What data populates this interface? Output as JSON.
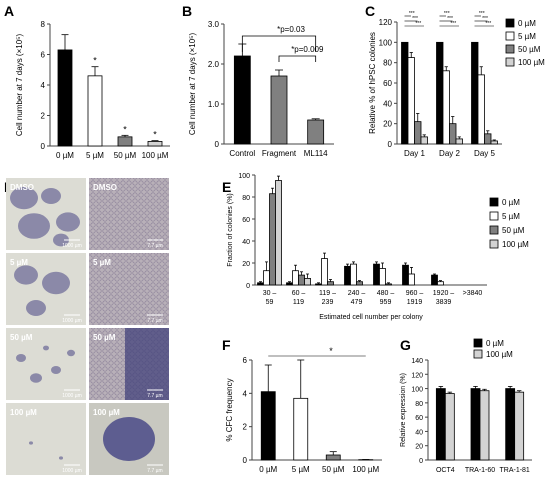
{
  "panels": [
    {
      "letter": "A"
    },
    {
      "letter": "B"
    },
    {
      "letter": "C"
    },
    {
      "letter": "D"
    },
    {
      "letter": "E"
    },
    {
      "letter": "F"
    },
    {
      "letter": "G"
    }
  ],
  "colors": {
    "black": "#000000",
    "white": "#ffffff",
    "gray": "#808080",
    "light": "#d3d3d3"
  },
  "chart_data": [
    {
      "panel": "A",
      "type": "bar",
      "ylabel": "Cell number at 7 days (×10⁵)",
      "ylim": [
        0,
        8
      ],
      "yticks": [
        0,
        2,
        4,
        6,
        8
      ],
      "categories": [
        "0 µM",
        "5 µM",
        "50 µM",
        "100 µM"
      ],
      "values": [
        6.3,
        4.6,
        0.6,
        0.3
      ],
      "errors": [
        1.0,
        0.6,
        0.1,
        0.05
      ],
      "colors": [
        "#000000",
        "#ffffff",
        "#808080",
        "#d3d3d3"
      ],
      "markers": [
        "",
        "*",
        "*",
        "*"
      ]
    },
    {
      "panel": "B",
      "type": "bar",
      "ylabel": "Cell number at 7 days (×10⁵)",
      "ylim": [
        0,
        3.0
      ],
      "yticks": [
        0,
        1.0,
        2.0,
        3.0
      ],
      "yticklabels": [
        "0",
        "1.0",
        "2.0",
        "3.0"
      ],
      "categories": [
        "Control",
        "Fragment",
        "ML114"
      ],
      "values": [
        2.2,
        1.7,
        0.6
      ],
      "errors": [
        0.3,
        0.15,
        0.03
      ],
      "colors": [
        "#000000",
        "#808080",
        "#808080"
      ],
      "annotations": [
        "*p=0.03",
        "*p=0.009"
      ]
    },
    {
      "panel": "C",
      "type": "bar",
      "ylabel": "Relative % of hPSC colonies",
      "ylim": [
        0,
        120
      ],
      "yticks": [
        0,
        20,
        40,
        60,
        80,
        100,
        120
      ],
      "categories": [
        "Day 1",
        "Day 2",
        "Day 5"
      ],
      "series": [
        {
          "name": "0 µM",
          "values": [
            100,
            100,
            100
          ],
          "errors": [
            0,
            0,
            0
          ]
        },
        {
          "name": "5 µM",
          "values": [
            85,
            72,
            68
          ],
          "errors": [
            5,
            4,
            8
          ]
        },
        {
          "name": "50 µM",
          "values": [
            22,
            20,
            10
          ],
          "errors": [
            8,
            7,
            3
          ]
        },
        {
          "name": "100 µM",
          "values": [
            7,
            5,
            3
          ],
          "errors": [
            2,
            2,
            1
          ]
        }
      ],
      "series_colors": [
        "#000000",
        "#ffffff",
        "#808080",
        "#d3d3d3"
      ],
      "sig_label": "***"
    },
    {
      "panel": "E",
      "type": "bar",
      "ylabel": "Fraction of colonies (%)",
      "xlabel": "Estimated cell number per colony",
      "ylim": [
        0,
        100
      ],
      "yticks": [
        0,
        20,
        40,
        60,
        80,
        100
      ],
      "categories": [
        [
          "30 –",
          "59"
        ],
        [
          "60 –",
          "119"
        ],
        [
          "119 –",
          "239"
        ],
        [
          "240 –",
          "479"
        ],
        [
          "480 –",
          "959"
        ],
        [
          "960 –",
          "1919"
        ],
        [
          "1920 –",
          "3839"
        ],
        [
          ">3840"
        ]
      ],
      "series": [
        {
          "name": "0 µM",
          "values": [
            2,
            2,
            1,
            17,
            19,
            18,
            9,
            0
          ],
          "errors": [
            1,
            1,
            1,
            2,
            2,
            2,
            1,
            0
          ]
        },
        {
          "name": "5 µM",
          "values": [
            13,
            13,
            24,
            19,
            15,
            10,
            3,
            0
          ],
          "errors": [
            8,
            5,
            5,
            2,
            5,
            6,
            1,
            0
          ]
        },
        {
          "name": "50 µM",
          "values": [
            83,
            9,
            3,
            3,
            1,
            0,
            0,
            0
          ],
          "errors": [
            5,
            3,
            2,
            1,
            1,
            0,
            0,
            0
          ]
        },
        {
          "name": "100 µM",
          "values": [
            95,
            6,
            0,
            0,
            0,
            0,
            0,
            0
          ],
          "errors": [
            4,
            4,
            0,
            0,
            0,
            0,
            0,
            0
          ]
        }
      ],
      "series_colors": [
        "#000000",
        "#ffffff",
        "#808080",
        "#d3d3d3"
      ]
    },
    {
      "panel": "F",
      "type": "bar",
      "ylabel": "% CFC frequency",
      "ylim": [
        0,
        6
      ],
      "yticks": [
        0,
        2,
        4,
        6
      ],
      "categories": [
        "0 µM",
        "5 µM",
        "50 µM",
        "100 µM"
      ],
      "values": [
        4.1,
        3.7,
        0.3,
        0.02
      ],
      "errors": [
        1.6,
        2.3,
        0.2,
        0.01
      ],
      "colors": [
        "#000000",
        "#ffffff",
        "#808080",
        "#d3d3d3"
      ],
      "sig_label": "*"
    },
    {
      "panel": "G",
      "type": "bar",
      "ylabel": "Relative expression (%)",
      "ylim": [
        0,
        140
      ],
      "yticks": [
        0,
        20,
        40,
        60,
        80,
        100,
        120,
        140
      ],
      "categories": [
        "OCT4",
        "TRA-1-60",
        "TRA-1-81"
      ],
      "series": [
        {
          "name": "0 µM",
          "values": [
            100,
            100,
            100
          ],
          "errors": [
            3,
            3,
            3
          ]
        },
        {
          "name": "100 µM",
          "values": [
            93,
            97,
            95
          ],
          "errors": [
            2,
            2,
            2
          ]
        }
      ],
      "series_colors": [
        "#000000",
        "#d3d3d3"
      ]
    }
  ],
  "micrographs": [
    {
      "label": "DMSO",
      "scale": "1000 µm"
    },
    {
      "label": "DMSO",
      "scale": "7.7 µm"
    },
    {
      "label": "5 µM",
      "scale": "1000 µm"
    },
    {
      "label": "5 µM",
      "scale": "7.7 µm"
    },
    {
      "label": "50 µM",
      "scale": "1000 µm"
    },
    {
      "label": "50 µM",
      "scale": "7.7 µm"
    },
    {
      "label": "100 µM",
      "scale": "1000 µm"
    },
    {
      "label": "100 µM",
      "scale": "7.7 µm"
    }
  ]
}
